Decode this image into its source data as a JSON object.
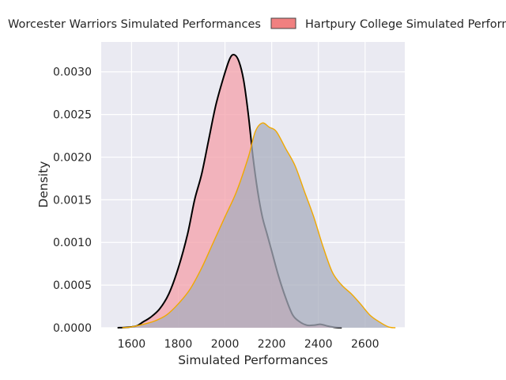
{
  "chart_data": {
    "type": "area",
    "title": "",
    "xlabel": "Simulated Performances",
    "ylabel": "Density",
    "xlim": [
      1470,
      2770
    ],
    "ylim": [
      0,
      0.00335
    ],
    "xticks": [
      1600,
      1800,
      2000,
      2200,
      2400,
      2600
    ],
    "yticks": [
      0,
      0.0005,
      0.001,
      0.0015,
      0.002,
      0.0025,
      0.003
    ],
    "xtick_labels": [
      "1600",
      "1800",
      "2000",
      "2200",
      "2400",
      "2600"
    ],
    "ytick_labels": [
      "0.0000",
      "0.0005",
      "0.0010",
      "0.0015",
      "0.0020",
      "0.0025",
      "0.0030"
    ],
    "grid": true,
    "legend_placement": "top, outside plot",
    "legend": [
      {
        "label": "Worcester Warriors Simulated Performances",
        "has_swatch": false
      },
      {
        "label": "Hartpury College Simulated Performances",
        "has_swatch": true,
        "swatch_color": "#f08080"
      }
    ],
    "series": [
      {
        "name": "Worcester Warriors Simulated Performances",
        "fill_color": "#f4a0aa",
        "line_color": "#000000",
        "points": [
          [
            1540,
            0
          ],
          [
            1580,
            5e-06
          ],
          [
            1620,
            2e-05
          ],
          [
            1650,
            7e-05
          ],
          [
            1680,
            0.00012
          ],
          [
            1720,
            0.00022
          ],
          [
            1760,
            0.0004
          ],
          [
            1800,
            0.0007
          ],
          [
            1840,
            0.0011
          ],
          [
            1870,
            0.0015
          ],
          [
            1900,
            0.0018
          ],
          [
            1930,
            0.0022
          ],
          [
            1960,
            0.0026
          ],
          [
            1990,
            0.0029
          ],
          [
            2020,
            0.00315
          ],
          [
            2040,
            0.0032
          ],
          [
            2060,
            0.00312
          ],
          [
            2080,
            0.0029
          ],
          [
            2100,
            0.0025
          ],
          [
            2120,
            0.002
          ],
          [
            2140,
            0.0016
          ],
          [
            2160,
            0.0013
          ],
          [
            2180,
            0.0011
          ],
          [
            2200,
            0.0009
          ],
          [
            2230,
            0.0006
          ],
          [
            2260,
            0.00035
          ],
          [
            2290,
            0.00015
          ],
          [
            2320,
            7e-05
          ],
          [
            2350,
            3e-05
          ],
          [
            2380,
            3e-05
          ],
          [
            2410,
            4e-05
          ],
          [
            2440,
            2e-05
          ],
          [
            2470,
            5e-06
          ],
          [
            2500,
            0
          ]
        ]
      },
      {
        "name": "Hartpury College Simulated Performances",
        "fill_color": "#a8aebd",
        "line_color": "#f0a800",
        "points": [
          [
            1560,
            0
          ],
          [
            1600,
            1e-05
          ],
          [
            1650,
            4e-05
          ],
          [
            1700,
            8e-05
          ],
          [
            1750,
            0.00015
          ],
          [
            1800,
            0.00028
          ],
          [
            1850,
            0.00045
          ],
          [
            1900,
            0.0007
          ],
          [
            1950,
            0.001
          ],
          [
            2000,
            0.0013
          ],
          [
            2050,
            0.0016
          ],
          [
            2100,
            0.002
          ],
          [
            2130,
            0.0023
          ],
          [
            2160,
            0.0024
          ],
          [
            2190,
            0.00235
          ],
          [
            2220,
            0.0023
          ],
          [
            2260,
            0.0021
          ],
          [
            2300,
            0.0019
          ],
          [
            2340,
            0.0016
          ],
          [
            2380,
            0.0013
          ],
          [
            2420,
            0.00095
          ],
          [
            2460,
            0.00065
          ],
          [
            2500,
            0.0005
          ],
          [
            2540,
            0.0004
          ],
          [
            2580,
            0.00028
          ],
          [
            2620,
            0.00015
          ],
          [
            2660,
            7e-05
          ],
          [
            2700,
            1e-05
          ],
          [
            2730,
            0
          ]
        ]
      }
    ]
  }
}
